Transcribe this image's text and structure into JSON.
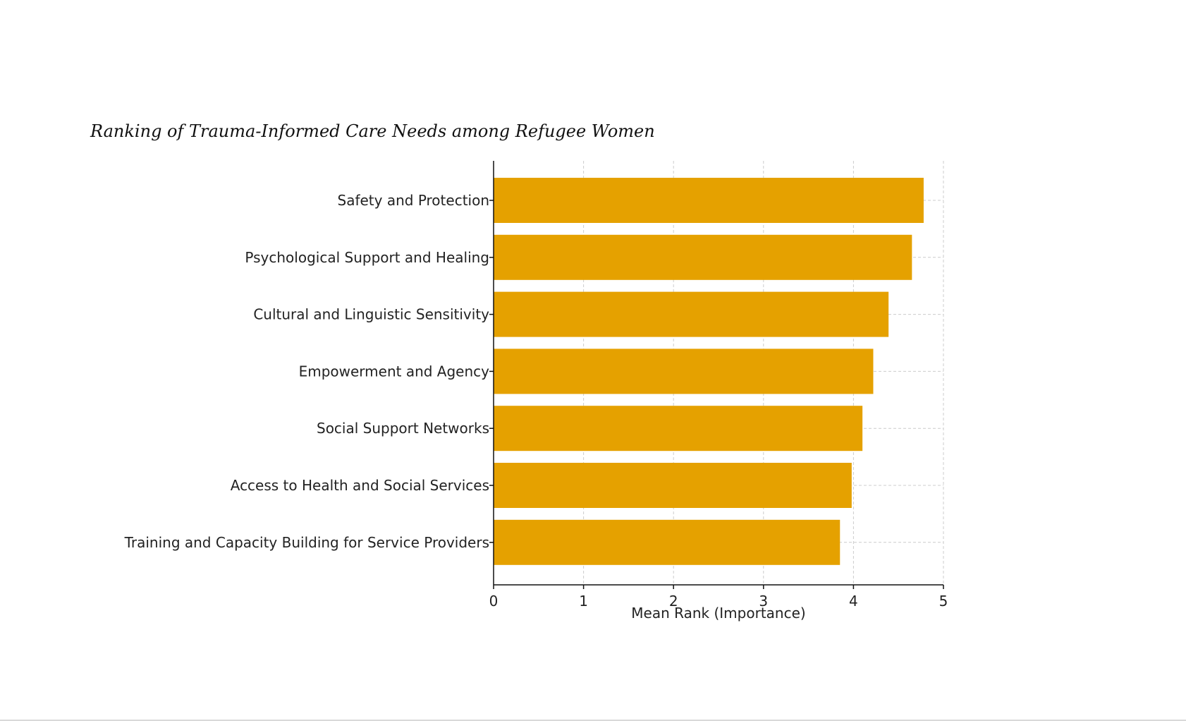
{
  "chart_data": {
    "type": "bar",
    "orientation": "horizontal",
    "title": "Ranking of Trauma-Informed Care Needs among Refugee Women",
    "xlabel": "Mean Rank (Importance)",
    "ylabel": "",
    "xlim": [
      0,
      5
    ],
    "xticks": [
      "0",
      "1",
      "2",
      "3",
      "4",
      "5"
    ],
    "grid": true,
    "bar_color": "#E5A100",
    "categories": [
      "Safety and Protection",
      "Psychological Support and Healing",
      "Cultural and Linguistic Sensitivity",
      "Empowerment and Agency",
      "Social Support Networks",
      "Access to Health and Social Services",
      "Training and Capacity Building for Service Providers"
    ],
    "values": [
      4.78,
      4.65,
      4.39,
      4.22,
      4.1,
      3.98,
      3.85
    ]
  }
}
